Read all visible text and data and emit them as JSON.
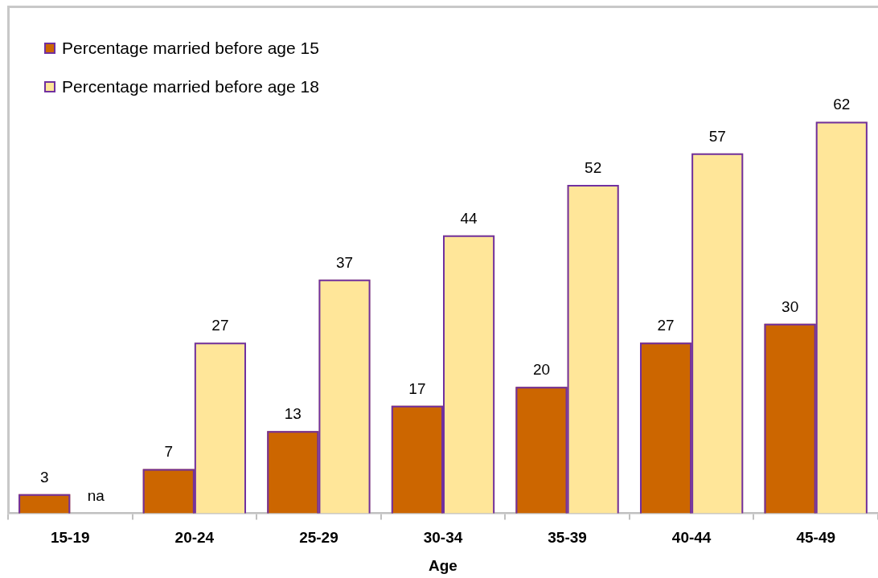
{
  "chart_data": {
    "type": "bar",
    "xlabel": "Age",
    "categories": [
      "15-19",
      "20-24",
      "25-29",
      "30-34",
      "35-39",
      "40-44",
      "45-49"
    ],
    "series": [
      {
        "name": "Percentage married before age 15",
        "color": "#cc6600",
        "values": [
          3,
          7,
          13,
          17,
          20,
          27,
          30
        ],
        "value_labels": [
          "3",
          "7",
          "13",
          "17",
          "20",
          "27",
          "30"
        ]
      },
      {
        "name": "Percentage married before age 18",
        "color": "#ffe699",
        "values": [
          null,
          27,
          37,
          44,
          52,
          57,
          62
        ],
        "value_labels": [
          "na",
          "27",
          "37",
          "44",
          "52",
          "57",
          "62"
        ]
      }
    ],
    "ylim": [
      0,
      80
    ],
    "legend": "top left",
    "tick_labels": "x"
  }
}
